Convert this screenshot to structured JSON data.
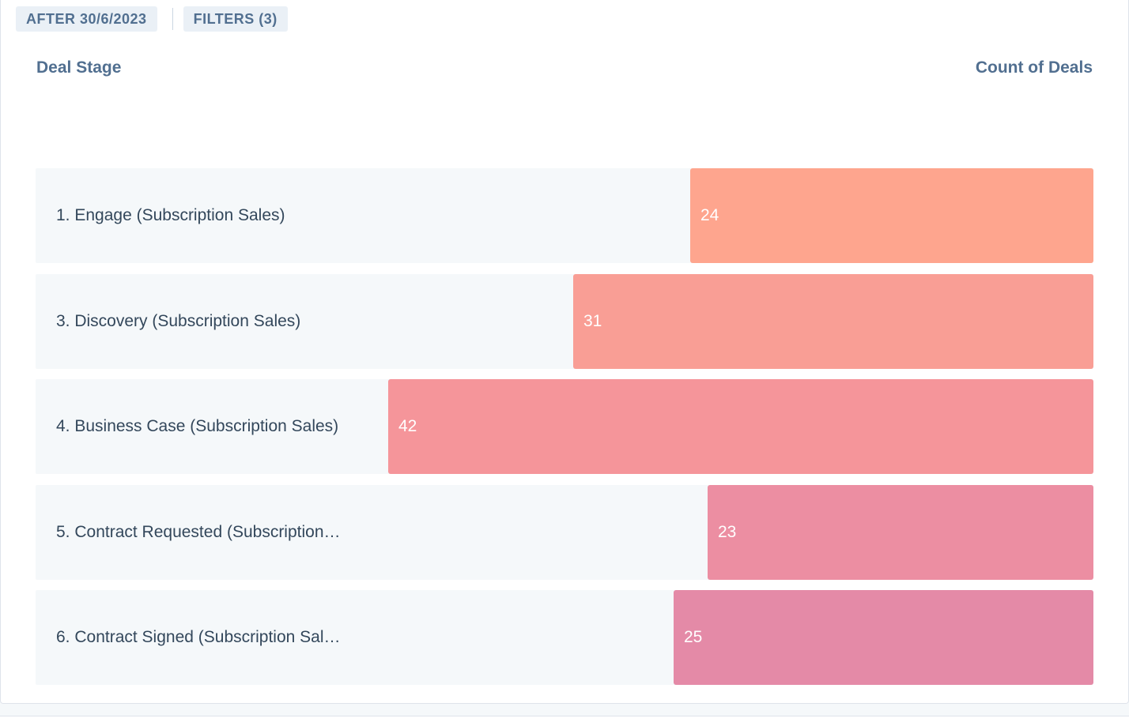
{
  "filters": {
    "date_label": "AFTER 30/6/2023",
    "filters_label": "FILTERS (3)"
  },
  "table_header": {
    "stage": "Deal Stage",
    "count": "Count of Deals"
  },
  "chart_data": {
    "type": "bar",
    "orientation": "horizontal-funnel",
    "xlabel": "Deal Stage",
    "ylabel": "Count of Deals",
    "categories": [
      "1. Engage (Subscription Sales)",
      "3. Discovery (Subscription Sales)",
      "4. Business Case (Subscription Sales)",
      "5. Contract Requested (Subscription…",
      "6. Contract Signed (Subscription Sal…"
    ],
    "values": [
      24,
      31,
      42,
      23,
      25
    ],
    "colors": [
      "#fea58e",
      "#f99e95",
      "#f5959a",
      "#ec8ea2",
      "#e48aa7"
    ],
    "max_value": 42,
    "legend": "none",
    "grid": false
  }
}
